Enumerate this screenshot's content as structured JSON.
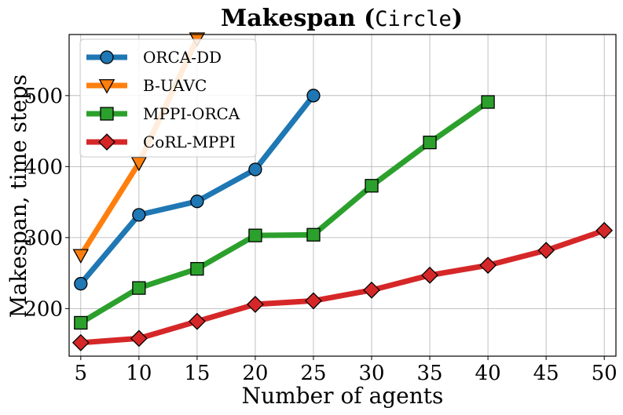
{
  "chart_data": {
    "type": "line",
    "title": "Makespan",
    "title_suffix": "Circle",
    "xlabel": "Number of agents",
    "ylabel": "Makespan, time steps",
    "x_ticks": [
      5,
      10,
      15,
      20,
      25,
      30,
      35,
      40,
      45,
      50
    ],
    "y_ticks": [
      200,
      300,
      400,
      500
    ],
    "xlim": [
      4,
      51
    ],
    "ylim": [
      133,
      586
    ],
    "grid": true,
    "legend_position": "top-left",
    "series": [
      {
        "name": "ORCA-DD",
        "color": "#1f77b4",
        "marker": "circle",
        "x": [
          5,
          10,
          15,
          20,
          25
        ],
        "values": [
          235,
          332,
          351,
          396,
          500
        ]
      },
      {
        "name": "B-UAVC",
        "color": "#ff7f0e",
        "marker": "triangle-down",
        "x": [
          5,
          10,
          15
        ],
        "values": [
          275,
          405,
          580
        ]
      },
      {
        "name": "MPPI-ORCA",
        "color": "#2ca02c",
        "marker": "square",
        "x": [
          5,
          10,
          15,
          20,
          25,
          30,
          35,
          40
        ],
        "values": [
          180,
          229,
          256,
          303,
          304,
          373,
          434,
          491
        ]
      },
      {
        "name": "CoRL-MPPI",
        "color": "#d62728",
        "marker": "diamond",
        "x": [
          5,
          10,
          15,
          20,
          25,
          30,
          35,
          40,
          45,
          50
        ],
        "values": [
          152,
          158,
          182,
          206,
          211,
          226,
          247,
          261,
          282,
          310
        ]
      }
    ]
  }
}
